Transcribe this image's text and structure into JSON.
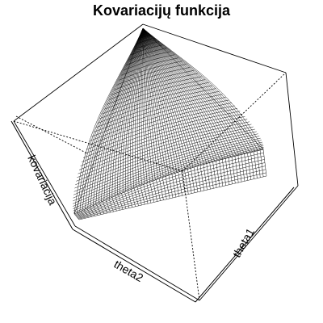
{
  "chart_data": {
    "type": "surface",
    "title": "Kovariacijų funkcija",
    "xlabel": "theta2",
    "ylabel": "theta1",
    "zlabel": "kovariacija",
    "box": true,
    "grid": false,
    "ticks": false
  }
}
